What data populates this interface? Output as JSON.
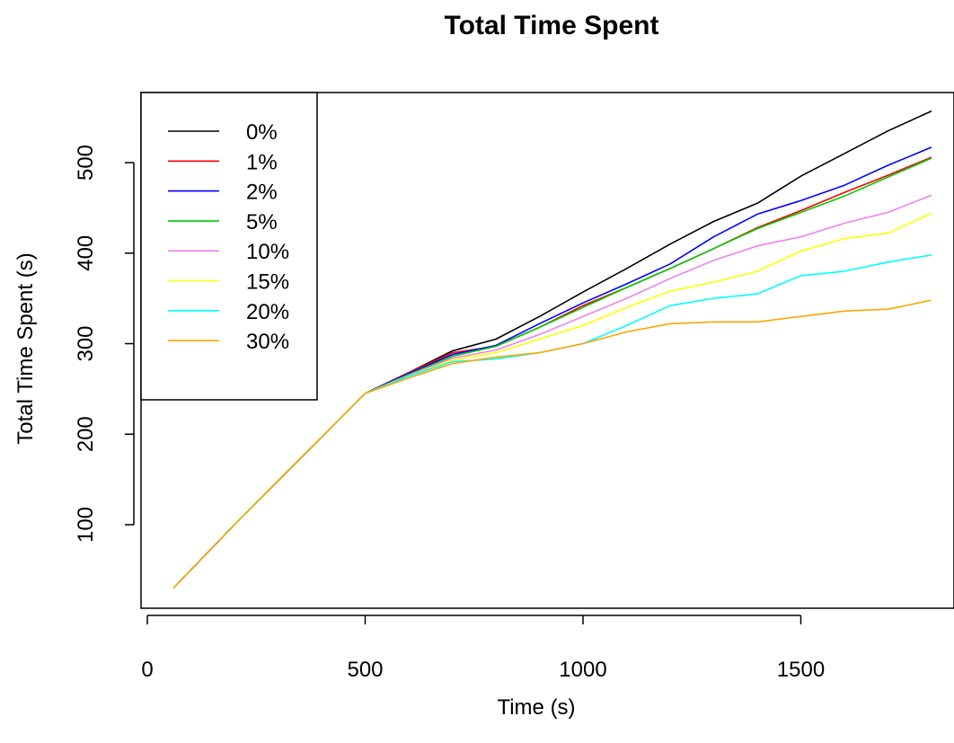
{
  "chart_data": {
    "type": "line",
    "title": "Total Time Spent",
    "xlabel": "Time (s)",
    "ylabel": "Total Time Spent (s)",
    "xlim": [
      0,
      1800
    ],
    "ylim": [
      27,
      563
    ],
    "xticks": [
      0,
      500,
      1000,
      1500
    ],
    "yticks": [
      100,
      200,
      300,
      400,
      500
    ],
    "grid": false,
    "legend_position": "top-left",
    "series": [
      {
        "name": "0%",
        "color": "#000000",
        "x": [
          60,
          200,
          500,
          600,
          700,
          800,
          900,
          1000,
          1100,
          1200,
          1300,
          1400,
          1500,
          1600,
          1700,
          1800
        ],
        "y": [
          30,
          100,
          245,
          268,
          292,
          305,
          330,
          357,
          383,
          410,
          435,
          455,
          485,
          510,
          535,
          557
        ]
      },
      {
        "name": "1%",
        "color": "#ff0000",
        "x": [
          60,
          200,
          500,
          600,
          700,
          800,
          900,
          1000,
          1100,
          1200,
          1300,
          1400,
          1500,
          1600,
          1700,
          1800
        ],
        "y": [
          30,
          100,
          245,
          268,
          290,
          297,
          318,
          342,
          362,
          383,
          405,
          428,
          447,
          467,
          486,
          506
        ]
      },
      {
        "name": "2%",
        "color": "#0000ff",
        "x": [
          60,
          200,
          500,
          600,
          700,
          800,
          900,
          1000,
          1100,
          1200,
          1300,
          1400,
          1500,
          1600,
          1700,
          1800
        ],
        "y": [
          30,
          100,
          245,
          267,
          288,
          298,
          322,
          345,
          366,
          388,
          418,
          443,
          458,
          475,
          497,
          517
        ]
      },
      {
        "name": "5%",
        "color": "#00cc00",
        "x": [
          60,
          200,
          500,
          600,
          700,
          800,
          900,
          1000,
          1100,
          1200,
          1300,
          1400,
          1500,
          1600,
          1700,
          1800
        ],
        "y": [
          30,
          100,
          245,
          266,
          286,
          297,
          318,
          340,
          362,
          383,
          405,
          427,
          445,
          463,
          484,
          505
        ]
      },
      {
        "name": "10%",
        "color": "#ee82ee",
        "x": [
          60,
          200,
          500,
          600,
          700,
          800,
          900,
          1000,
          1100,
          1200,
          1300,
          1400,
          1500,
          1600,
          1700,
          1800
        ],
        "y": [
          30,
          100,
          245,
          265,
          284,
          293,
          310,
          330,
          350,
          372,
          392,
          408,
          418,
          433,
          445,
          464
        ]
      },
      {
        "name": "15%",
        "color": "#ffff00",
        "x": [
          60,
          200,
          500,
          600,
          700,
          800,
          900,
          1000,
          1100,
          1200,
          1300,
          1400,
          1500,
          1600,
          1700,
          1800
        ],
        "y": [
          30,
          100,
          245,
          264,
          282,
          290,
          305,
          320,
          340,
          358,
          368,
          380,
          402,
          416,
          422,
          444
        ]
      },
      {
        "name": "20%",
        "color": "#00ffff",
        "x": [
          60,
          200,
          500,
          600,
          700,
          800,
          900,
          1000,
          1100,
          1200,
          1300,
          1400,
          1500,
          1600,
          1700,
          1800
        ],
        "y": [
          30,
          100,
          245,
          264,
          280,
          283,
          290,
          300,
          320,
          342,
          350,
          355,
          375,
          380,
          390,
          398
        ]
      },
      {
        "name": "30%",
        "color": "#ffa500",
        "x": [
          60,
          200,
          500,
          600,
          700,
          800,
          900,
          1000,
          1100,
          1200,
          1300,
          1400,
          1500,
          1600,
          1700,
          1800
        ],
        "y": [
          30,
          100,
          245,
          262,
          278,
          285,
          290,
          300,
          313,
          322,
          324,
          324,
          330,
          336,
          338,
          348
        ]
      }
    ]
  }
}
